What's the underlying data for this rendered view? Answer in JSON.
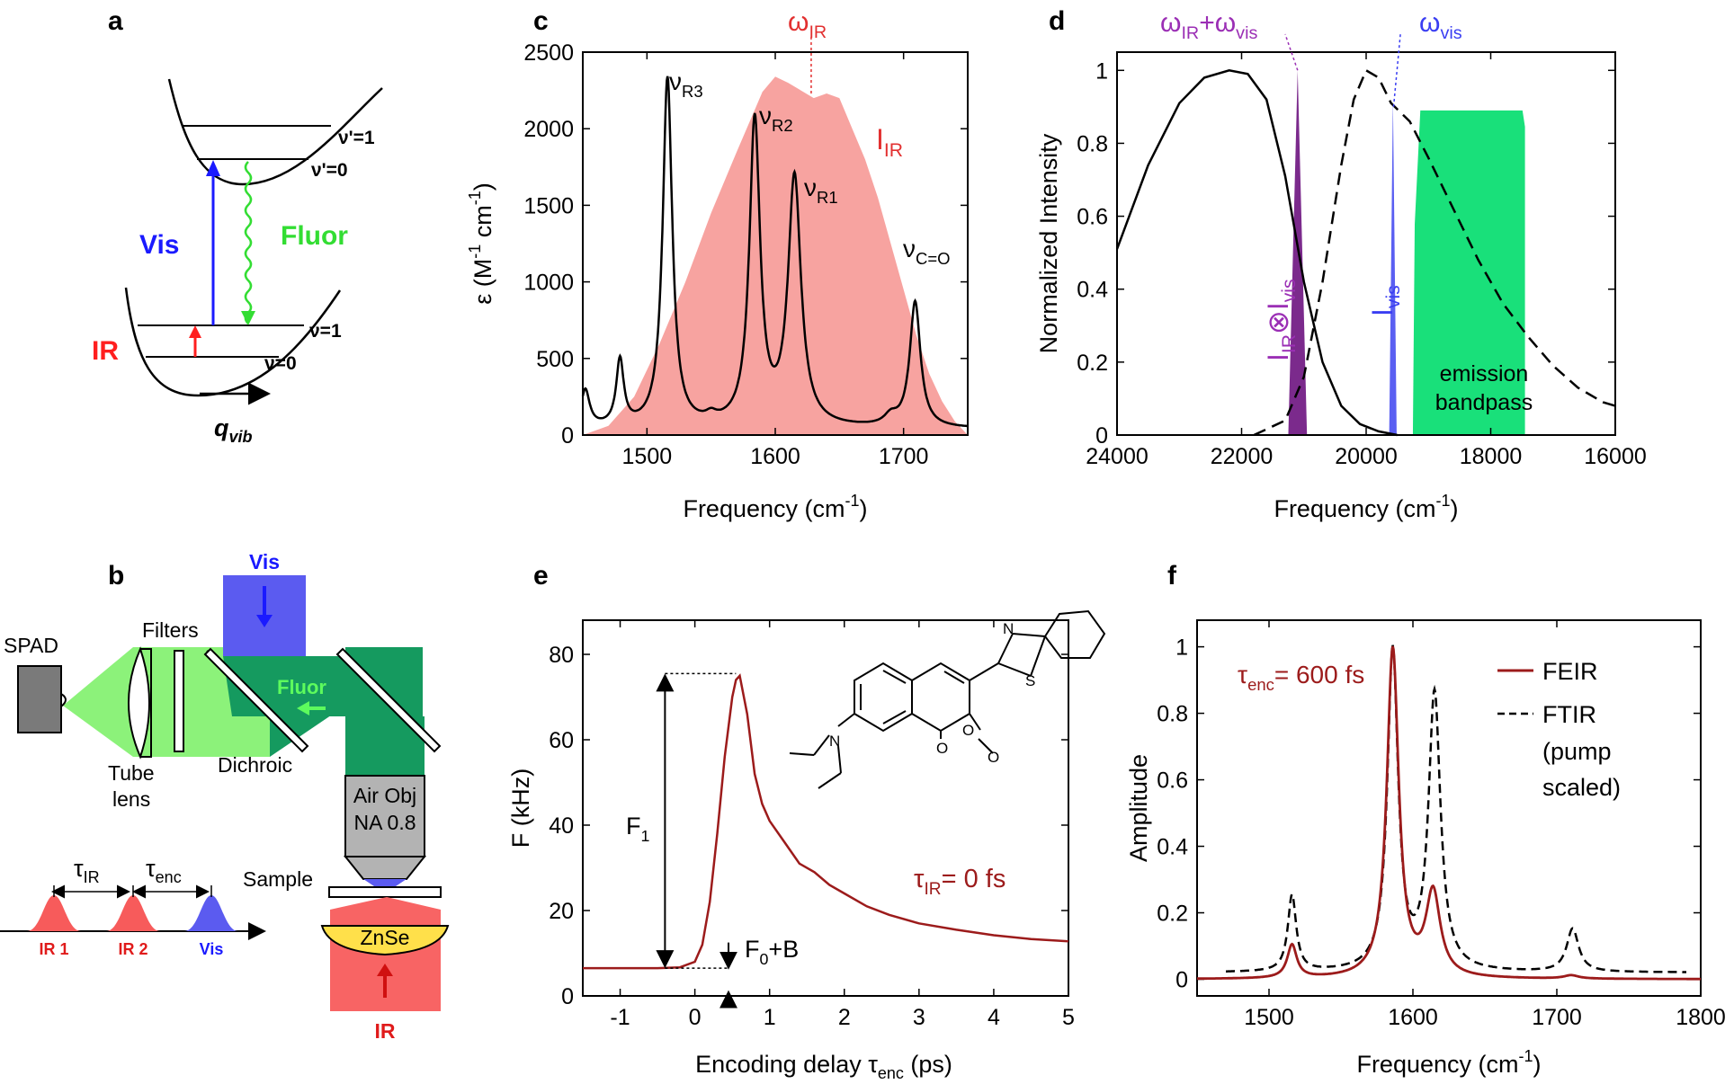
{
  "panels": {
    "a": {
      "label": "a",
      "upper_v1": "ν'=1",
      "upper_v0": "ν'=0",
      "lower_v1": "ν=1",
      "lower_v0": "ν=0",
      "vis": "Vis",
      "fluor": "Fluor",
      "ir": "IR",
      "qvib": "q",
      "qvib_sub": "vib"
    },
    "b": {
      "label": "b",
      "spad": "SPAD",
      "filters": "Filters",
      "tube_lens_1": "Tube",
      "tube_lens_2": "lens",
      "dichroic": "Dichroic",
      "vis": "Vis",
      "fluor": "Fluor",
      "objective_1": "Air Obj",
      "objective_2": "NA 0.8",
      "sample": "Sample",
      "znse": "ZnSe",
      "ir": "IR",
      "tau": "τ",
      "tau_ir_sub": "IR",
      "tau_enc_sub": "enc",
      "pulse_ir1": "IR 1",
      "pulse_ir2": "IR 2",
      "pulse_vis": "Vis"
    },
    "c": {
      "label": "c"
    },
    "d": {
      "label": "d"
    },
    "e": {
      "label": "e"
    },
    "f": {
      "label": "f"
    }
  },
  "chart_data": [
    {
      "id": "c",
      "type": "line",
      "xlabel": "Frequency (cm",
      "xlabel_sup": "-1",
      "xlabel_end": ")",
      "ylabel": "ε (M",
      "ylabel_sup1": "-1",
      "ylabel_mid": " cm",
      "ylabel_sup2": "-1",
      "ylabel_end": ")",
      "xlim": [
        1450,
        1750
      ],
      "ylim": [
        0,
        2500
      ],
      "xticks": [
        1500,
        1600,
        1700
      ],
      "yticks": [
        0,
        500,
        1000,
        1500,
        2000,
        2500
      ],
      "series": [
        {
          "name": "I",
          "sub": "IR",
          "kind": "area",
          "color": "#f7a3a0",
          "x": [
            1450,
            1470,
            1490,
            1510,
            1530,
            1550,
            1570,
            1590,
            1600,
            1610,
            1620,
            1630,
            1640,
            1650,
            1660,
            1670,
            1680,
            1690,
            1700,
            1710,
            1720,
            1730,
            1740,
            1750
          ],
          "y": [
            0,
            60,
            250,
            600,
            1000,
            1450,
            1850,
            2240,
            2340,
            2300,
            2250,
            2200,
            2230,
            2200,
            2000,
            1800,
            1550,
            1250,
            950,
            650,
            400,
            220,
            90,
            0
          ]
        },
        {
          "kind": "line",
          "color": "#000000",
          "peaks": [
            {
              "center": 1516,
              "height": 2280,
              "width": 4.5
            },
            {
              "center": 1584,
              "height": 1990,
              "width": 5
            },
            {
              "center": 1615,
              "height": 1620,
              "width": 6
            },
            {
              "center": 1709,
              "height": 820,
              "width": 5
            },
            {
              "center": 1479,
              "height": 430,
              "width": 3.5
            },
            {
              "center": 1452,
              "height": 240,
              "width": 4
            },
            {
              "center": 1550,
              "height": 40,
              "width": 5
            },
            {
              "center": 1690,
              "height": 60,
              "width": 6
            }
          ],
          "baseline": 40
        }
      ],
      "annotations": [
        {
          "text": "ν",
          "sub": "R3",
          "x": 1517,
          "y": 2330
        },
        {
          "text": "ν",
          "sub": "R2",
          "x": 1585,
          "y": 1990
        },
        {
          "text": "ν",
          "sub": "R1",
          "x": 1618,
          "y": 1600
        },
        {
          "text": "ν",
          "sub": "C=O",
          "x": 1707,
          "y": 1360
        },
        {
          "text": "ω",
          "sub": "IR",
          "x": 1628,
          "y": 2660
        },
        {
          "text": "I",
          "sub": "IR",
          "x": 1688,
          "y": 1860
        }
      ]
    },
    {
      "id": "d",
      "type": "line",
      "xlabel": "Frequency (cm",
      "xlabel_sup": "-1",
      "xlabel_end": ")",
      "ylabel": "Normalized Intensity",
      "xlim": [
        24000,
        16000
      ],
      "ylim": [
        0,
        1.05
      ],
      "xticks": [
        24000,
        22000,
        20000,
        18000,
        16000
      ],
      "yticks": [
        0,
        0.2,
        0.4,
        0.6,
        0.8,
        1
      ],
      "series": [
        {
          "name": "absorption",
          "kind": "line",
          "color": "#000000",
          "dash": false,
          "x": [
            24000,
            23500,
            23000,
            22600,
            22200,
            21900,
            21600,
            21300,
            21000,
            20700,
            20400,
            20100,
            19800,
            19500
          ],
          "y": [
            0.51,
            0.74,
            0.91,
            0.98,
            1.0,
            0.99,
            0.92,
            0.71,
            0.42,
            0.2,
            0.08,
            0.03,
            0.01,
            0.0
          ]
        },
        {
          "name": "emission",
          "kind": "line",
          "color": "#000000",
          "dash": true,
          "x": [
            21800,
            21300,
            21000,
            20700,
            20400,
            20200,
            20000,
            19800,
            19600,
            19300,
            19000,
            18600,
            18200,
            17800,
            17400,
            17000,
            16600,
            16200,
            16000
          ],
          "y": [
            0.0,
            0.04,
            0.16,
            0.42,
            0.74,
            0.92,
            1.0,
            0.98,
            0.91,
            0.86,
            0.76,
            0.62,
            0.48,
            0.36,
            0.27,
            0.19,
            0.13,
            0.09,
            0.08
          ]
        },
        {
          "name": "I_IR⊗I_vis",
          "kind": "spike",
          "color": "#7b2a8c",
          "center": 21100,
          "halfwidth": 150,
          "height": 1.0
        },
        {
          "name": "I_vis",
          "kind": "spike",
          "color": "#5a5ff2",
          "center": 19570,
          "halfwidth": 60,
          "height": 0.92
        },
        {
          "name": "emission bandpass",
          "kind": "band",
          "color": "#19e07a",
          "from": 19250,
          "to": 17450,
          "height": 0.89
        }
      ],
      "annotations": [
        {
          "text": "ω",
          "sub": "IR",
          "text2": "+ω",
          "sub2": "vis",
          "color": "#9b2fb5",
          "x": 21100,
          "y": 1.11
        },
        {
          "text": "ω",
          "sub": "vis",
          "color": "#3a3ef2",
          "x": 19560,
          "y": 1.11
        },
        {
          "text": "I",
          "sub": "IR",
          "mid": "⊗",
          "text2": "I",
          "sub2": "vis",
          "color": "#9b2fb5",
          "x": 21520,
          "y": 0.38,
          "rotate": -90
        },
        {
          "text": "I",
          "sub": "vis",
          "color": "#3a3ef2",
          "x": 19830,
          "y": 0.43,
          "rotate": -90
        },
        {
          "text": "emission",
          "x": 18250,
          "y": 0.17
        },
        {
          "text": "bandpass",
          "x": 18250,
          "y": 0.08
        }
      ]
    },
    {
      "id": "e",
      "type": "line",
      "xlabel": "Encoding delay τ",
      "xlabel_sub": "enc",
      "xlabel_end": " (ps)",
      "ylabel": "F (kHz)",
      "xlim": [
        -1.5,
        5
      ],
      "ylim": [
        0,
        88
      ],
      "xticks": [
        -1,
        0,
        1,
        2,
        3,
        4,
        5
      ],
      "yticks": [
        0,
        20,
        40,
        60,
        80
      ],
      "series": [
        {
          "name": "signal",
          "kind": "line",
          "color": "#9c1b1b",
          "x": [
            -1.5,
            -1.0,
            -0.5,
            -0.2,
            0.0,
            0.1,
            0.2,
            0.3,
            0.4,
            0.5,
            0.55,
            0.6,
            0.7,
            0.8,
            0.9,
            1.0,
            1.2,
            1.4,
            1.6,
            1.8,
            2.0,
            2.3,
            2.6,
            3.0,
            3.5,
            4.0,
            4.5,
            5.0
          ],
          "y": [
            6.5,
            6.5,
            6.5,
            6.7,
            8,
            12,
            22,
            38,
            56,
            70,
            74,
            75,
            66,
            52,
            45,
            41,
            36,
            31,
            29,
            26,
            24,
            21,
            19,
            17,
            15.5,
            14.2,
            13.3,
            12.8
          ]
        }
      ],
      "annotations": [
        {
          "text": "F",
          "sub": "1"
        },
        {
          "text": "F",
          "sub": "0",
          "tail": "+B"
        },
        {
          "text": "τ",
          "sub": "IR",
          "tail": "= 0 fs",
          "color": "#9c1b1b"
        }
      ]
    },
    {
      "id": "f",
      "type": "line",
      "xlabel": "Frequency (cm",
      "xlabel_sup": "-1",
      "xlabel_end": ")",
      "ylabel": "Amplitude",
      "xlim": [
        1450,
        1800
      ],
      "ylim": [
        -0.05,
        1.08
      ],
      "xticks": [
        1500,
        1600,
        1700,
        1800
      ],
      "yticks": [
        0,
        0.2,
        0.4,
        0.6,
        0.8,
        1
      ],
      "series": [
        {
          "name": "FEIR",
          "kind": "line",
          "color": "#9c1b1b",
          "dash": false,
          "peaks": [
            {
              "center": 1516,
              "height": 0.1,
              "width": 4
            },
            {
              "center": 1586,
              "height": 0.99,
              "width": 5
            },
            {
              "center": 1614,
              "height": 0.25,
              "width": 6
            },
            {
              "center": 1710,
              "height": 0.01,
              "width": 6
            }
          ]
        },
        {
          "name": "FTIR",
          "kind": "line",
          "color": "#000000",
          "dash": true,
          "peaks": [
            {
              "center": 1516,
              "height": 0.23,
              "width": 3.5
            },
            {
              "center": 1586,
              "height": 0.96,
              "width": 4.5
            },
            {
              "center": 1615,
              "height": 0.83,
              "width": 5
            },
            {
              "center": 1711,
              "height": 0.13,
              "width": 5
            }
          ],
          "baseline": 0.02
        }
      ],
      "legend": {
        "placement": "top-right",
        "entries": [
          "FEIR",
          "FTIR"
        ],
        "extra_1": "(pump",
        "extra_2": "scaled)"
      },
      "annotations": [
        {
          "text": "τ",
          "sub": "enc",
          "tail": "= 600 fs",
          "color": "#9c1b1b"
        }
      ]
    }
  ]
}
